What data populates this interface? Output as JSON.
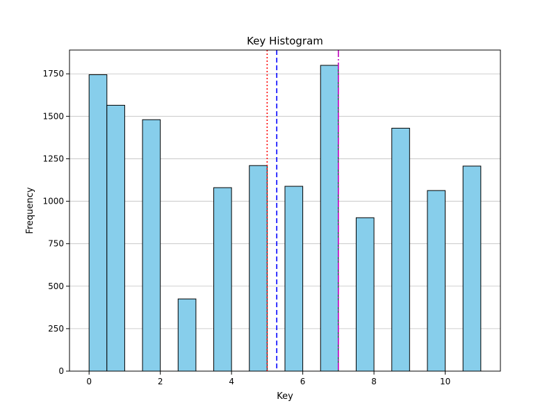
{
  "chart_data": {
    "type": "bar",
    "title": "Key Histogram",
    "xlabel": "Key",
    "ylabel": "Frequency",
    "xlim": [
      -0.55,
      11.55
    ],
    "ylim": [
      0,
      1890
    ],
    "xticks": [
      0,
      2,
      4,
      6,
      8,
      10
    ],
    "yticks": [
      0,
      250,
      500,
      750,
      1000,
      1250,
      1500,
      1750
    ],
    "grid": "horizontal",
    "bins": [
      {
        "x0": 0.0,
        "x1": 0.5,
        "value": 1745
      },
      {
        "x0": 0.5,
        "x1": 1.0,
        "value": 1565
      },
      {
        "x0": 1.5,
        "x1": 2.0,
        "value": 1480
      },
      {
        "x0": 2.5,
        "x1": 3.0,
        "value": 425
      },
      {
        "x0": 3.5,
        "x1": 4.0,
        "value": 1080
      },
      {
        "x0": 4.5,
        "x1": 5.0,
        "value": 1210
      },
      {
        "x0": 5.5,
        "x1": 6.0,
        "value": 1088
      },
      {
        "x0": 6.5,
        "x1": 7.0,
        "value": 1800
      },
      {
        "x0": 7.5,
        "x1": 8.0,
        "value": 903
      },
      {
        "x0": 8.5,
        "x1": 9.0,
        "value": 1430
      },
      {
        "x0": 9.5,
        "x1": 10.0,
        "value": 1063
      },
      {
        "x0": 10.5,
        "x1": 11.0,
        "value": 1207
      }
    ],
    "reference_lines": [
      {
        "x": 5.0,
        "color": "#ff0000",
        "style": "dotted"
      },
      {
        "x": 5.27,
        "color": "#0000ff",
        "style": "dashed"
      },
      {
        "x": 7.0,
        "color": "#bf00bf",
        "style": "dashdot"
      }
    ],
    "colors": {
      "bar_fill": "#87ceeb",
      "bar_edge": "#000000",
      "grid": "#c0c0c0"
    }
  }
}
